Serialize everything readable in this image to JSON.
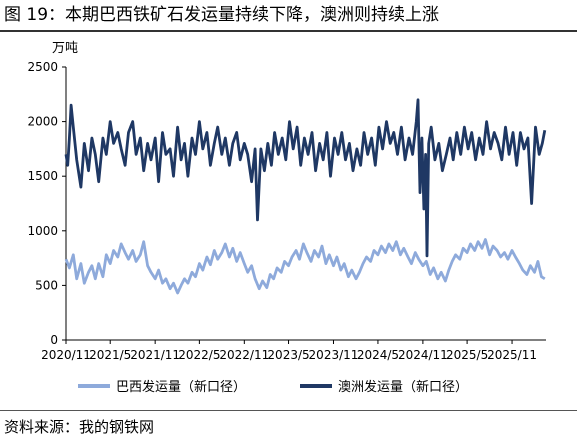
{
  "header": {
    "title": "图 19：本期巴西铁矿石发运量持续下降，澳洲则持续上涨"
  },
  "footer": {
    "source": "资料来源：我的钢铁网"
  },
  "chart_data": {
    "type": "line",
    "ylabel": "万吨",
    "ylim": [
      0,
      2500
    ],
    "yticks": [
      0,
      500,
      1000,
      1500,
      2000,
      2500
    ],
    "x_range": [
      "2020-11-01",
      "2026-03-20"
    ],
    "xtick_labels": [
      "2020/11",
      "2021/5",
      "2021/11",
      "2022/5",
      "2022/11",
      "2023/5",
      "2023/11",
      "2024/5",
      "2024/11",
      "2025/5",
      "2025/11"
    ],
    "grid": false,
    "legend_position": "bottom",
    "series": [
      {
        "name": "巴西发运量（新口径）",
        "color": "#8eaadb",
        "points": [
          [
            "2020-11-01",
            740
          ],
          [
            "2020-11-15",
            660
          ],
          [
            "2020-12-01",
            780
          ],
          [
            "2020-12-15",
            560
          ],
          [
            "2021-01-01",
            700
          ],
          [
            "2021-01-15",
            520
          ],
          [
            "2021-02-01",
            620
          ],
          [
            "2021-02-15",
            680
          ],
          [
            "2021-03-01",
            560
          ],
          [
            "2021-03-15",
            700
          ],
          [
            "2021-04-01",
            580
          ],
          [
            "2021-04-15",
            780
          ],
          [
            "2021-05-01",
            700
          ],
          [
            "2021-05-15",
            820
          ],
          [
            "2021-06-01",
            760
          ],
          [
            "2021-06-15",
            880
          ],
          [
            "2021-07-01",
            800
          ],
          [
            "2021-07-15",
            740
          ],
          [
            "2021-08-01",
            820
          ],
          [
            "2021-08-15",
            720
          ],
          [
            "2021-09-01",
            780
          ],
          [
            "2021-09-15",
            900
          ],
          [
            "2021-10-01",
            680
          ],
          [
            "2021-10-15",
            620
          ],
          [
            "2021-11-01",
            560
          ],
          [
            "2021-11-15",
            640
          ],
          [
            "2021-12-01",
            520
          ],
          [
            "2021-12-15",
            560
          ],
          [
            "2022-01-01",
            470
          ],
          [
            "2022-01-15",
            520
          ],
          [
            "2022-02-01",
            430
          ],
          [
            "2022-02-15",
            500
          ],
          [
            "2022-03-01",
            560
          ],
          [
            "2022-03-15",
            520
          ],
          [
            "2022-04-01",
            620
          ],
          [
            "2022-04-15",
            580
          ],
          [
            "2022-05-01",
            700
          ],
          [
            "2022-05-15",
            640
          ],
          [
            "2022-06-01",
            760
          ],
          [
            "2022-06-15",
            690
          ],
          [
            "2022-07-01",
            820
          ],
          [
            "2022-07-15",
            740
          ],
          [
            "2022-08-01",
            800
          ],
          [
            "2022-08-15",
            880
          ],
          [
            "2022-09-01",
            760
          ],
          [
            "2022-09-15",
            840
          ],
          [
            "2022-10-01",
            720
          ],
          [
            "2022-10-15",
            800
          ],
          [
            "2022-11-01",
            700
          ],
          [
            "2022-11-15",
            620
          ],
          [
            "2022-12-01",
            680
          ],
          [
            "2022-12-15",
            560
          ],
          [
            "2023-01-01",
            470
          ],
          [
            "2023-01-15",
            540
          ],
          [
            "2023-02-01",
            480
          ],
          [
            "2023-02-15",
            600
          ],
          [
            "2023-03-01",
            560
          ],
          [
            "2023-03-15",
            660
          ],
          [
            "2023-04-01",
            620
          ],
          [
            "2023-04-15",
            720
          ],
          [
            "2023-05-01",
            680
          ],
          [
            "2023-05-15",
            760
          ],
          [
            "2023-06-01",
            820
          ],
          [
            "2023-06-15",
            740
          ],
          [
            "2023-07-01",
            880
          ],
          [
            "2023-07-15",
            800
          ],
          [
            "2023-08-01",
            720
          ],
          [
            "2023-08-15",
            820
          ],
          [
            "2023-09-01",
            760
          ],
          [
            "2023-09-15",
            860
          ],
          [
            "2023-10-01",
            700
          ],
          [
            "2023-10-15",
            780
          ],
          [
            "2023-11-01",
            680
          ],
          [
            "2023-11-15",
            760
          ],
          [
            "2023-12-01",
            640
          ],
          [
            "2023-12-15",
            700
          ],
          [
            "2024-01-01",
            580
          ],
          [
            "2024-01-15",
            640
          ],
          [
            "2024-02-01",
            560
          ],
          [
            "2024-02-15",
            620
          ],
          [
            "2024-03-01",
            700
          ],
          [
            "2024-03-15",
            760
          ],
          [
            "2024-04-01",
            720
          ],
          [
            "2024-04-15",
            820
          ],
          [
            "2024-05-01",
            780
          ],
          [
            "2024-05-15",
            860
          ],
          [
            "2024-06-01",
            800
          ],
          [
            "2024-06-15",
            880
          ],
          [
            "2024-07-01",
            820
          ],
          [
            "2024-07-15",
            900
          ],
          [
            "2024-08-01",
            780
          ],
          [
            "2024-08-15",
            840
          ],
          [
            "2024-09-01",
            760
          ],
          [
            "2024-09-15",
            700
          ],
          [
            "2024-10-01",
            800
          ],
          [
            "2024-10-15",
            740
          ],
          [
            "2024-11-01",
            680
          ],
          [
            "2024-11-15",
            720
          ],
          [
            "2024-12-01",
            600
          ],
          [
            "2024-12-15",
            660
          ],
          [
            "2025-01-01",
            560
          ],
          [
            "2025-01-15",
            620
          ],
          [
            "2025-02-01",
            540
          ],
          [
            "2025-02-15",
            640
          ],
          [
            "2025-03-01",
            720
          ],
          [
            "2025-03-15",
            780
          ],
          [
            "2025-04-01",
            740
          ],
          [
            "2025-04-15",
            840
          ],
          [
            "2025-05-01",
            800
          ],
          [
            "2025-05-15",
            880
          ],
          [
            "2025-06-01",
            820
          ],
          [
            "2025-06-15",
            900
          ],
          [
            "2025-07-01",
            840
          ],
          [
            "2025-07-15",
            920
          ],
          [
            "2025-08-01",
            780
          ],
          [
            "2025-08-15",
            860
          ],
          [
            "2025-09-01",
            820
          ],
          [
            "2025-09-15",
            760
          ],
          [
            "2025-10-01",
            800
          ],
          [
            "2025-10-15",
            740
          ],
          [
            "2025-11-01",
            820
          ],
          [
            "2025-11-15",
            760
          ],
          [
            "2025-12-01",
            700
          ],
          [
            "2025-12-15",
            640
          ],
          [
            "2026-01-01",
            600
          ],
          [
            "2026-01-15",
            680
          ],
          [
            "2026-02-01",
            620
          ],
          [
            "2026-02-15",
            720
          ],
          [
            "2026-03-01",
            580
          ],
          [
            "2026-03-15",
            560
          ]
        ]
      },
      {
        "name": "澳洲发运量（新口径）",
        "color": "#1f3864",
        "points": [
          [
            "2020-11-01",
            1700
          ],
          [
            "2020-11-08",
            1600
          ],
          [
            "2020-11-15",
            1850
          ],
          [
            "2020-11-22",
            2150
          ],
          [
            "2020-12-01",
            1950
          ],
          [
            "2020-12-15",
            1650
          ],
          [
            "2021-01-01",
            1400
          ],
          [
            "2021-01-15",
            1800
          ],
          [
            "2021-02-01",
            1550
          ],
          [
            "2021-02-15",
            1850
          ],
          [
            "2021-03-01",
            1700
          ],
          [
            "2021-03-15",
            1450
          ],
          [
            "2021-04-01",
            1850
          ],
          [
            "2021-04-15",
            1700
          ],
          [
            "2021-05-01",
            2000
          ],
          [
            "2021-05-15",
            1800
          ],
          [
            "2021-06-01",
            1900
          ],
          [
            "2021-06-15",
            1750
          ],
          [
            "2021-07-01",
            1600
          ],
          [
            "2021-07-15",
            1900
          ],
          [
            "2021-08-01",
            2000
          ],
          [
            "2021-08-15",
            1700
          ],
          [
            "2021-09-01",
            1850
          ],
          [
            "2021-09-15",
            1550
          ],
          [
            "2021-10-01",
            1800
          ],
          [
            "2021-10-15",
            1650
          ],
          [
            "2021-11-01",
            1850
          ],
          [
            "2021-11-15",
            1450
          ],
          [
            "2021-12-01",
            1900
          ],
          [
            "2021-12-15",
            1700
          ],
          [
            "2022-01-01",
            1750
          ],
          [
            "2022-01-15",
            1500
          ],
          [
            "2022-02-01",
            1950
          ],
          [
            "2022-02-15",
            1650
          ],
          [
            "2022-03-01",
            1800
          ],
          [
            "2022-03-15",
            1500
          ],
          [
            "2022-04-01",
            1850
          ],
          [
            "2022-04-15",
            1700
          ],
          [
            "2022-05-01",
            2000
          ],
          [
            "2022-05-15",
            1750
          ],
          [
            "2022-06-01",
            1900
          ],
          [
            "2022-06-15",
            1600
          ],
          [
            "2022-07-01",
            1800
          ],
          [
            "2022-07-15",
            1950
          ],
          [
            "2022-08-01",
            1700
          ],
          [
            "2022-08-15",
            1850
          ],
          [
            "2022-09-01",
            1600
          ],
          [
            "2022-09-15",
            1800
          ],
          [
            "2022-10-01",
            1900
          ],
          [
            "2022-10-15",
            1650
          ],
          [
            "2022-11-01",
            1800
          ],
          [
            "2022-11-15",
            1700
          ],
          [
            "2022-12-01",
            1450
          ],
          [
            "2022-12-15",
            1750
          ],
          [
            "2022-12-25",
            1100
          ],
          [
            "2023-01-08",
            1750
          ],
          [
            "2023-01-22",
            1550
          ],
          [
            "2023-02-05",
            1800
          ],
          [
            "2023-02-20",
            1600
          ],
          [
            "2023-03-05",
            1900
          ],
          [
            "2023-03-20",
            1700
          ],
          [
            "2023-04-05",
            1850
          ],
          [
            "2023-04-20",
            1650
          ],
          [
            "2023-05-05",
            2000
          ],
          [
            "2023-05-20",
            1750
          ],
          [
            "2023-06-05",
            1950
          ],
          [
            "2023-06-20",
            1600
          ],
          [
            "2023-07-05",
            1850
          ],
          [
            "2023-07-20",
            1700
          ],
          [
            "2023-08-05",
            1900
          ],
          [
            "2023-08-20",
            1550
          ],
          [
            "2023-09-05",
            1800
          ],
          [
            "2023-09-20",
            1650
          ],
          [
            "2023-10-05",
            1900
          ],
          [
            "2023-10-20",
            1500
          ],
          [
            "2023-11-05",
            1850
          ],
          [
            "2023-11-20",
            1700
          ],
          [
            "2023-12-05",
            1900
          ],
          [
            "2023-12-20",
            1650
          ],
          [
            "2024-01-05",
            1800
          ],
          [
            "2024-01-20",
            1550
          ],
          [
            "2024-02-05",
            1750
          ],
          [
            "2024-02-20",
            1600
          ],
          [
            "2024-03-05",
            1900
          ],
          [
            "2024-03-20",
            1700
          ],
          [
            "2024-04-05",
            1850
          ],
          [
            "2024-04-20",
            1600
          ],
          [
            "2024-05-05",
            1950
          ],
          [
            "2024-05-20",
            1750
          ],
          [
            "2024-06-05",
            2000
          ],
          [
            "2024-06-20",
            1800
          ],
          [
            "2024-07-05",
            1900
          ],
          [
            "2024-07-20",
            1700
          ],
          [
            "2024-08-05",
            1950
          ],
          [
            "2024-08-20",
            1650
          ],
          [
            "2024-09-05",
            1850
          ],
          [
            "2024-09-20",
            1700
          ],
          [
            "2024-10-05",
            2000
          ],
          [
            "2024-10-12",
            2200
          ],
          [
            "2024-10-20",
            1350
          ],
          [
            "2024-10-28",
            1850
          ],
          [
            "2024-11-05",
            1200
          ],
          [
            "2024-11-12",
            1700
          ],
          [
            "2024-11-18",
            770
          ],
          [
            "2024-11-25",
            1800
          ],
          [
            "2024-12-05",
            1950
          ],
          [
            "2024-12-20",
            1650
          ],
          [
            "2025-01-05",
            1800
          ],
          [
            "2025-01-20",
            1550
          ],
          [
            "2025-02-05",
            1700
          ],
          [
            "2025-02-20",
            1850
          ],
          [
            "2025-03-05",
            1650
          ],
          [
            "2025-03-20",
            1900
          ],
          [
            "2025-04-05",
            1700
          ],
          [
            "2025-04-20",
            1950
          ],
          [
            "2025-05-05",
            1750
          ],
          [
            "2025-05-20",
            1900
          ],
          [
            "2025-06-05",
            1650
          ],
          [
            "2025-06-20",
            1850
          ],
          [
            "2025-07-05",
            1700
          ],
          [
            "2025-07-20",
            2000
          ],
          [
            "2025-08-05",
            1750
          ],
          [
            "2025-08-20",
            1900
          ],
          [
            "2025-09-05",
            1800
          ],
          [
            "2025-09-20",
            1650
          ],
          [
            "2025-10-05",
            1950
          ],
          [
            "2025-10-20",
            1700
          ],
          [
            "2025-11-05",
            1900
          ],
          [
            "2025-11-20",
            1600
          ],
          [
            "2025-12-05",
            1900
          ],
          [
            "2025-12-20",
            1750
          ],
          [
            "2026-01-05",
            1850
          ],
          [
            "2026-01-20",
            1250
          ],
          [
            "2026-02-05",
            1950
          ],
          [
            "2026-02-20",
            1700
          ],
          [
            "2026-03-05",
            1800
          ],
          [
            "2026-03-15",
            1920
          ]
        ]
      }
    ]
  }
}
